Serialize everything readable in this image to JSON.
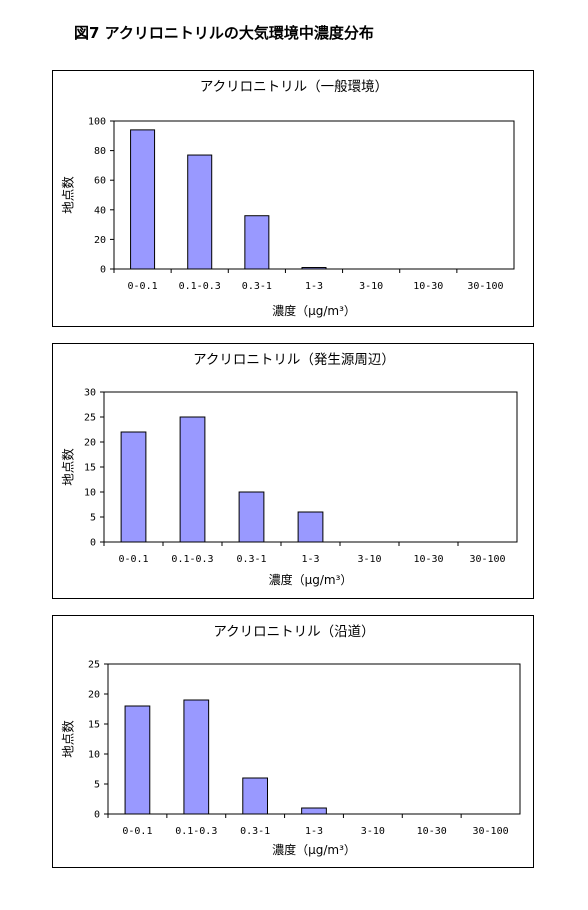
{
  "figure_title": "図7 アクリロニトリルの大気環境中濃度分布",
  "chart_data": [
    {
      "type": "bar",
      "title": "アクリロニトリル（一般環境）",
      "xlabel": "濃度（μg/m³）",
      "ylabel": "地点数",
      "categories": [
        "0-0.1",
        "0.1-0.3",
        "0.3-1",
        "1-3",
        "3-10",
        "10-30",
        "30-100"
      ],
      "values": [
        94,
        77,
        36,
        1,
        0,
        0,
        0
      ],
      "ylim": [
        0,
        100
      ],
      "yticks": [
        0,
        20,
        40,
        60,
        80,
        100
      ],
      "bar_color": "#9999ff",
      "grid": false
    },
    {
      "type": "bar",
      "title": "アクリロニトリル（発生源周辺）",
      "xlabel": "濃度（μg/m³）",
      "ylabel": "地点数",
      "categories": [
        "0-0.1",
        "0.1-0.3",
        "0.3-1",
        "1-3",
        "3-10",
        "10-30",
        "30-100"
      ],
      "values": [
        22,
        25,
        10,
        6,
        0,
        0,
        0
      ],
      "ylim": [
        0,
        30
      ],
      "yticks": [
        0,
        5,
        10,
        15,
        20,
        25,
        30
      ],
      "bar_color": "#9999ff",
      "grid": false
    },
    {
      "type": "bar",
      "title": "アクリロニトリル（沿道）",
      "xlabel": "濃度（μg/m³）",
      "ylabel": "地点数",
      "categories": [
        "0-0.1",
        "0.1-0.3",
        "0.3-1",
        "1-3",
        "3-10",
        "10-30",
        "30-100"
      ],
      "values": [
        18,
        19,
        6,
        1,
        0,
        0,
        0
      ],
      "ylim": [
        0,
        25
      ],
      "yticks": [
        0,
        5,
        10,
        15,
        20,
        25
      ],
      "bar_color": "#9999ff",
      "grid": false
    }
  ]
}
